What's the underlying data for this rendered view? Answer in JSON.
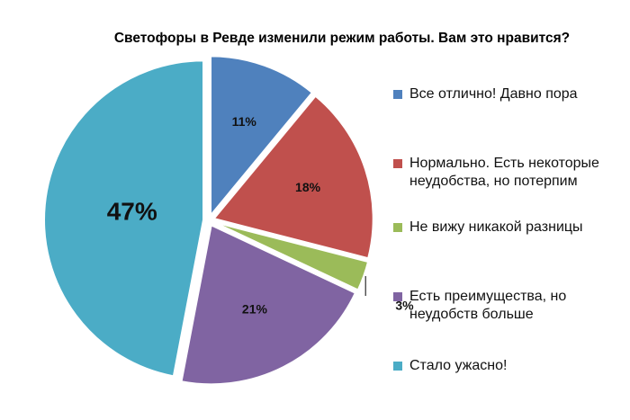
{
  "chart_data": {
    "type": "pie",
    "title": "Светофоры в Ревде изменили режим работы. Вам это нравится?",
    "slices": [
      {
        "label": "Все отлично! Давно пора",
        "value": 11,
        "display": "11%",
        "color": "#4F81BD"
      },
      {
        "label": "Нормально. Есть некоторые\nнеудобства, но потерпим",
        "value": 18,
        "display": "18%",
        "color": "#C0504D"
      },
      {
        "label": "Не вижу никакой разницы",
        "value": 3,
        "display": "3%",
        "color": "#9BBB59"
      },
      {
        "label": "Есть преимущества, но\nнеудобств больше",
        "value": 21,
        "display": "21%",
        "color": "#8064A2"
      },
      {
        "label": "Стало ужасно!",
        "value": 47,
        "display": "47%",
        "color": "#4BACC6"
      }
    ],
    "legend_position": "right"
  }
}
